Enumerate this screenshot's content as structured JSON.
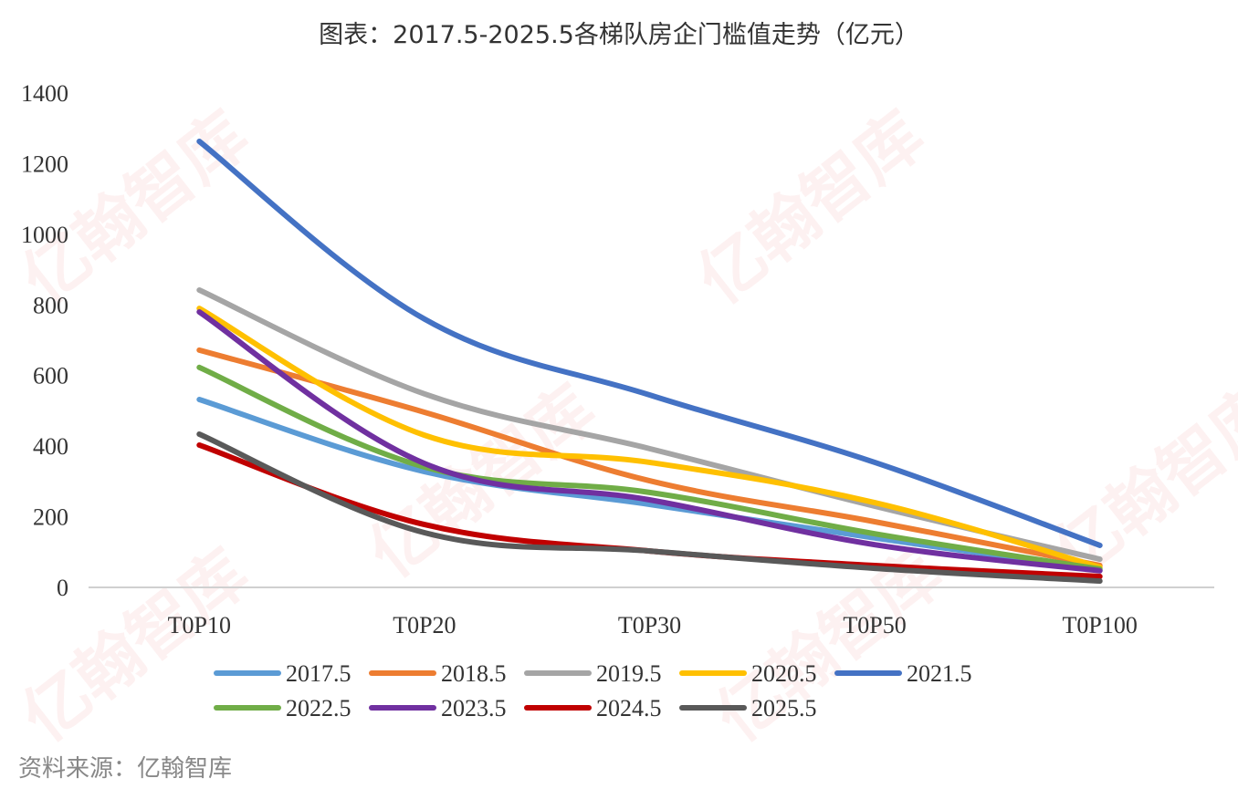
{
  "title": "图表：2017.5-2025.5各梯队房企门槛值走势（亿元）",
  "source": "资料来源：亿翰智库",
  "watermark": "亿翰智库",
  "chart_data": {
    "type": "line",
    "title": "图表：2017.5-2025.5各梯队房企门槛值走势（亿元）",
    "xlabel": "",
    "ylabel": "",
    "categories": [
      "T0P10",
      "T0P20",
      "T0P30",
      "T0P50",
      "T0P100"
    ],
    "ylim": [
      0,
      1400
    ],
    "yticks": [
      0,
      200,
      400,
      600,
      800,
      1000,
      1200,
      1400
    ],
    "grid": false,
    "legend_position": "bottom",
    "series": [
      {
        "name": "2017.5",
        "color": "#5B9BD5",
        "values": [
          532,
          328,
          235,
          140,
          49
        ]
      },
      {
        "name": "2018.5",
        "color": "#ED7D31",
        "values": [
          672,
          496,
          302,
          186,
          62
        ]
      },
      {
        "name": "2019.5",
        "color": "#A5A5A5",
        "values": [
          842,
          548,
          393,
          230,
          80
        ]
      },
      {
        "name": "2020.5",
        "color": "#FFC000",
        "values": [
          790,
          431,
          354,
          240,
          57
        ]
      },
      {
        "name": "2021.5",
        "color": "#4472C4",
        "values": [
          1263,
          760,
          545,
          354,
          119
        ]
      },
      {
        "name": "2022.5",
        "color": "#70AD47",
        "values": [
          623,
          341,
          269,
          152,
          52
        ]
      },
      {
        "name": "2023.5",
        "color": "#7030A0",
        "values": [
          780,
          351,
          248,
          121,
          47
        ]
      },
      {
        "name": "2024.5",
        "color": "#C00000",
        "values": [
          403,
          178,
          103,
          62,
          31
        ]
      },
      {
        "name": "2025.5",
        "color": "#595959",
        "values": [
          434,
          155,
          103,
          54,
          18
        ]
      }
    ]
  }
}
